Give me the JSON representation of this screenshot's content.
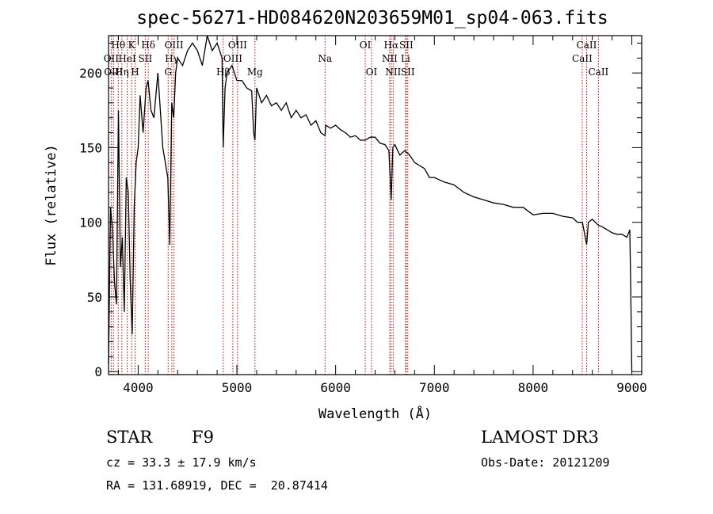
{
  "chart_data": {
    "type": "line",
    "title": "spec-56271-HD084620N203659M01_sp04-063.fits",
    "xlabel": "Wavelength (Å)",
    "ylabel": "Flux (relative)",
    "xlim": [
      3700,
      9100
    ],
    "ylim": [
      -2,
      225
    ],
    "xticks": [
      4000,
      5000,
      6000,
      7000,
      8000,
      9000
    ],
    "yticks": [
      0,
      50,
      100,
      150,
      200
    ],
    "grid": false,
    "line_color": "#000000",
    "marker_color": "#cc0000",
    "series": [
      {
        "x": [
          3700,
          3720,
          3740,
          3760,
          3780,
          3800,
          3820,
          3840,
          3860,
          3880,
          3900,
          3920,
          3940,
          3960,
          3980,
          4000,
          4020,
          4050,
          4080,
          4100,
          4130,
          4160,
          4200,
          4250,
          4300,
          4320,
          4340,
          4360,
          4380,
          4400,
          4450,
          4500,
          4550,
          4600,
          4650,
          4700,
          4750,
          4800,
          4850,
          4861,
          4880,
          4900,
          4950,
          5000,
          5050,
          5100,
          5150,
          5170,
          5183,
          5200,
          5250,
          5300,
          5350,
          5400,
          5450,
          5500,
          5550,
          5600,
          5650,
          5700,
          5750,
          5800,
          5850,
          5893,
          5900,
          5950,
          6000,
          6050,
          6100,
          6150,
          6200,
          6250,
          6300,
          6350,
          6400,
          6450,
          6500,
          6540,
          6563,
          6580,
          6600,
          6650,
          6700,
          6750,
          6800,
          6850,
          6900,
          6950,
          7000,
          7100,
          7200,
          7300,
          7400,
          7500,
          7600,
          7700,
          7800,
          7900,
          8000,
          8100,
          8200,
          8300,
          8400,
          8450,
          8500,
          8542,
          8560,
          8600,
          8662,
          8700,
          8750,
          8800,
          8850,
          8900,
          8950,
          8980,
          8990,
          9000
        ],
        "y": [
          5,
          110,
          95,
          60,
          45,
          175,
          70,
          90,
          40,
          130,
          120,
          60,
          25,
          110,
          140,
          150,
          185,
          160,
          190,
          195,
          175,
          170,
          200,
          150,
          130,
          85,
          180,
          170,
          200,
          210,
          205,
          215,
          220,
          215,
          205,
          225,
          215,
          220,
          210,
          150,
          190,
          200,
          205,
          195,
          195,
          190,
          188,
          160,
          155,
          190,
          180,
          185,
          178,
          180,
          175,
          180,
          170,
          175,
          170,
          172,
          165,
          168,
          160,
          158,
          165,
          163,
          165,
          162,
          160,
          157,
          158,
          155,
          155,
          157,
          157,
          153,
          152,
          148,
          115,
          150,
          152,
          145,
          148,
          145,
          140,
          138,
          136,
          130,
          130,
          127,
          125,
          120,
          117,
          115,
          113,
          112,
          110,
          110,
          105,
          106,
          106,
          104,
          103,
          100,
          100,
          85,
          100,
          102,
          98,
          97,
          95,
          93,
          92,
          92,
          90,
          95,
          50,
          0
        ]
      }
    ],
    "lines": [
      {
        "label": "Hθ",
        "x": 3798,
        "row": 1
      },
      {
        "label": "OII",
        "x": 3727,
        "row": 2
      },
      {
        "label": "OIII",
        "x": 3750,
        "row": 3
      },
      {
        "label": "K",
        "x": 3934,
        "row": 1
      },
      {
        "label": "HeI",
        "x": 3889,
        "row": 2
      },
      {
        "label": "Hη",
        "x": 3835,
        "row": 3
      },
      {
        "label": "Hδ",
        "x": 4102,
        "row": 1
      },
      {
        "label": "SII",
        "x": 4072,
        "row": 2
      },
      {
        "label": "H",
        "x": 3969,
        "row": 3
      },
      {
        "label": "OIII",
        "x": 4363,
        "row": 1
      },
      {
        "label": "Hγ",
        "x": 4341,
        "row": 2
      },
      {
        "label": "G",
        "x": 4304,
        "row": 3
      },
      {
        "label": "OIII",
        "x": 5007,
        "row": 1
      },
      {
        "label": "OIII",
        "x": 4959,
        "row": 2
      },
      {
        "label": "Hβ",
        "x": 4861,
        "row": 3
      },
      {
        "label": "Mg",
        "x": 5183,
        "row": 3
      },
      {
        "label": "Na",
        "x": 5893,
        "row": 2
      },
      {
        "label": "OI",
        "x": 6300,
        "row": 1
      },
      {
        "label": "OI",
        "x": 6364,
        "row": 3
      },
      {
        "label": "Hα",
        "x": 6563,
        "row": 1
      },
      {
        "label": "SII",
        "x": 6716,
        "row": 1
      },
      {
        "label": "NII",
        "x": 6548,
        "row": 2
      },
      {
        "label": "Li",
        "x": 6708,
        "row": 2
      },
      {
        "label": "NII",
        "x": 6583,
        "row": 3
      },
      {
        "label": "SII",
        "x": 6731,
        "row": 3
      },
      {
        "label": "CaII",
        "x": 8542,
        "row": 1
      },
      {
        "label": "CaII",
        "x": 8498,
        "row": 2
      },
      {
        "label": "CaII",
        "x": 8662,
        "row": 3
      }
    ]
  },
  "info": {
    "class_label": "STAR",
    "subclass": "F9",
    "survey": "LAMOST DR3",
    "cz": "cz = 33.3 ± 17.9 km/s",
    "obs_date": "Obs-Date: 20121209",
    "coords": "RA = 131.68919, DEC =  20.87414"
  }
}
